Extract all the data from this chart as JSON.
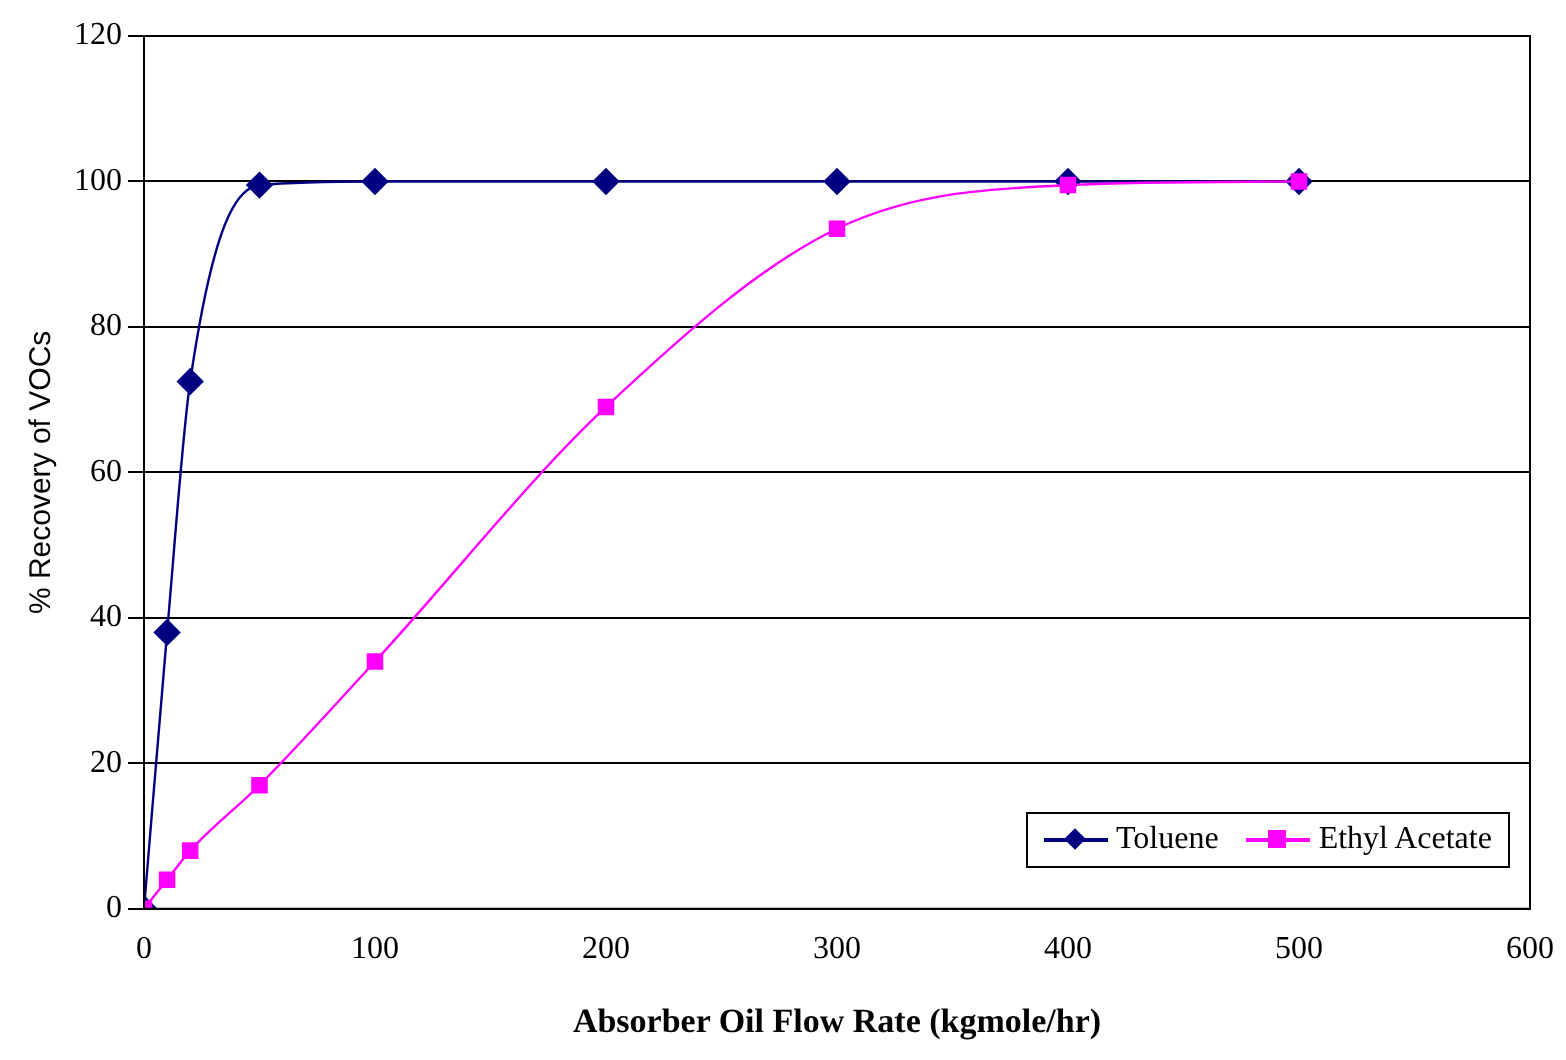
{
  "chart_data": {
    "type": "line",
    "xlabel": "Absorber Oil Flow Rate (kgmole/hr)",
    "ylabel": "% Recovery of VOCs",
    "x": [
      0,
      10,
      20,
      50,
      100,
      200,
      300,
      400,
      500
    ],
    "series": [
      {
        "name": "Toluene",
        "color": "#000080",
        "marker": "diamond",
        "values": [
          0,
          38,
          72.5,
          99.5,
          100,
          100,
          100,
          100,
          100
        ]
      },
      {
        "name": "Ethyl Acetate",
        "color": "#ff00ff",
        "marker": "square",
        "values": [
          0,
          4,
          8,
          17,
          34,
          69,
          93.5,
          99.5,
          100
        ]
      }
    ],
    "xlim": [
      0,
      600
    ],
    "xticks": [
      0,
      100,
      200,
      300,
      400,
      500,
      600
    ],
    "ylim": [
      0,
      120
    ],
    "yticks": [
      0,
      20,
      40,
      60,
      80,
      100,
      120
    ],
    "grid": "y",
    "legend": "bottom right",
    "line_style": "solid"
  }
}
